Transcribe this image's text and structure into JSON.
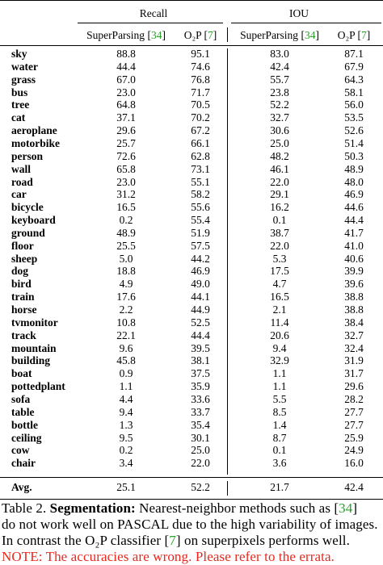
{
  "table": {
    "group_headers": [
      "Recall",
      "IOU"
    ],
    "sub_headers": [
      {
        "method": "SuperParsing",
        "ref": "34"
      },
      {
        "method": "O₂P",
        "ref": "7"
      },
      {
        "method": "SuperParsing",
        "ref": "34"
      },
      {
        "method": "O₂P",
        "ref": "7"
      }
    ],
    "rows": [
      {
        "label": "sky",
        "values": [
          "88.8",
          "95.1",
          "83.0",
          "87.1"
        ]
      },
      {
        "label": "water",
        "values": [
          "44.4",
          "74.6",
          "42.4",
          "67.9"
        ]
      },
      {
        "label": "grass",
        "values": [
          "67.0",
          "76.8",
          "55.7",
          "64.3"
        ]
      },
      {
        "label": "bus",
        "values": [
          "23.0",
          "71.7",
          "23.8",
          "58.1"
        ]
      },
      {
        "label": "tree",
        "values": [
          "64.8",
          "70.5",
          "52.2",
          "56.0"
        ]
      },
      {
        "label": "cat",
        "values": [
          "37.1",
          "70.2",
          "32.7",
          "53.5"
        ]
      },
      {
        "label": "aeroplane",
        "values": [
          "29.6",
          "67.2",
          "30.6",
          "52.6"
        ]
      },
      {
        "label": "motorbike",
        "values": [
          "25.7",
          "66.1",
          "25.0",
          "51.4"
        ]
      },
      {
        "label": "person",
        "values": [
          "72.6",
          "62.8",
          "48.2",
          "50.3"
        ]
      },
      {
        "label": "wall",
        "values": [
          "65.8",
          "73.1",
          "46.1",
          "48.9"
        ]
      },
      {
        "label": "road",
        "values": [
          "23.0",
          "55.1",
          "22.0",
          "48.0"
        ]
      },
      {
        "label": "car",
        "values": [
          "31.2",
          "58.2",
          "29.1",
          "46.9"
        ]
      },
      {
        "label": "bicycle",
        "values": [
          "16.5",
          "55.6",
          "16.2",
          "44.6"
        ]
      },
      {
        "label": "keyboard",
        "values": [
          "0.2",
          "55.4",
          "0.1",
          "44.4"
        ]
      },
      {
        "label": "ground",
        "values": [
          "48.9",
          "51.9",
          "38.7",
          "41.7"
        ]
      },
      {
        "label": "floor",
        "values": [
          "25.5",
          "57.5",
          "22.0",
          "41.0"
        ]
      },
      {
        "label": "sheep",
        "values": [
          "5.0",
          "44.2",
          "5.3",
          "40.6"
        ]
      },
      {
        "label": "dog",
        "values": [
          "18.8",
          "46.9",
          "17.5",
          "39.9"
        ]
      },
      {
        "label": "bird",
        "values": [
          "4.9",
          "49.0",
          "4.7",
          "39.6"
        ]
      },
      {
        "label": "train",
        "values": [
          "17.6",
          "44.1",
          "16.5",
          "38.8"
        ]
      },
      {
        "label": "horse",
        "values": [
          "2.2",
          "44.9",
          "2.1",
          "38.8"
        ]
      },
      {
        "label": "tvmonitor",
        "values": [
          "10.8",
          "52.5",
          "11.4",
          "38.4"
        ]
      },
      {
        "label": "track",
        "values": [
          "22.1",
          "44.4",
          "20.6",
          "32.7"
        ]
      },
      {
        "label": "mountain",
        "values": [
          "9.6",
          "39.5",
          "9.4",
          "32.4"
        ]
      },
      {
        "label": "building",
        "values": [
          "45.8",
          "38.1",
          "32.9",
          "31.9"
        ]
      },
      {
        "label": "boat",
        "values": [
          "0.9",
          "37.5",
          "1.1",
          "31.7"
        ]
      },
      {
        "label": "pottedplant",
        "values": [
          "1.1",
          "35.9",
          "1.1",
          "29.6"
        ]
      },
      {
        "label": "sofa",
        "values": [
          "4.4",
          "33.6",
          "5.5",
          "28.2"
        ]
      },
      {
        "label": "table",
        "values": [
          "9.4",
          "33.7",
          "8.5",
          "27.7"
        ]
      },
      {
        "label": "bottle",
        "values": [
          "1.3",
          "35.4",
          "1.4",
          "27.7"
        ]
      },
      {
        "label": "ceiling",
        "values": [
          "9.5",
          "30.1",
          "8.7",
          "25.9"
        ]
      },
      {
        "label": "cow",
        "values": [
          "0.2",
          "25.0",
          "0.1",
          "24.9"
        ]
      },
      {
        "label": "chair",
        "values": [
          "3.4",
          "22.0",
          "3.6",
          "16.0"
        ]
      }
    ],
    "avg": {
      "label": "Avg.",
      "values": [
        "25.1",
        "52.2",
        "21.7",
        "42.4"
      ]
    }
  },
  "caption": {
    "line1_prefix": "Table 2. ",
    "line1_bold": "Segmentation:",
    "line1_text": " Nearest-neighbor methods such as [",
    "line1_ref": "34",
    "line1_end": "]",
    "line2": "do not work well on PASCAL due to the high variability of images.",
    "line3_prefix": "In contrast the O₂P classifier [",
    "line3_ref": "7",
    "line3_end": "] on superpixels performs well.",
    "line4": "NOTE: The accuracies are wrong. Please refer to the errata."
  },
  "colors": {
    "citation": "#2ca02c",
    "note": "#e8281e"
  }
}
